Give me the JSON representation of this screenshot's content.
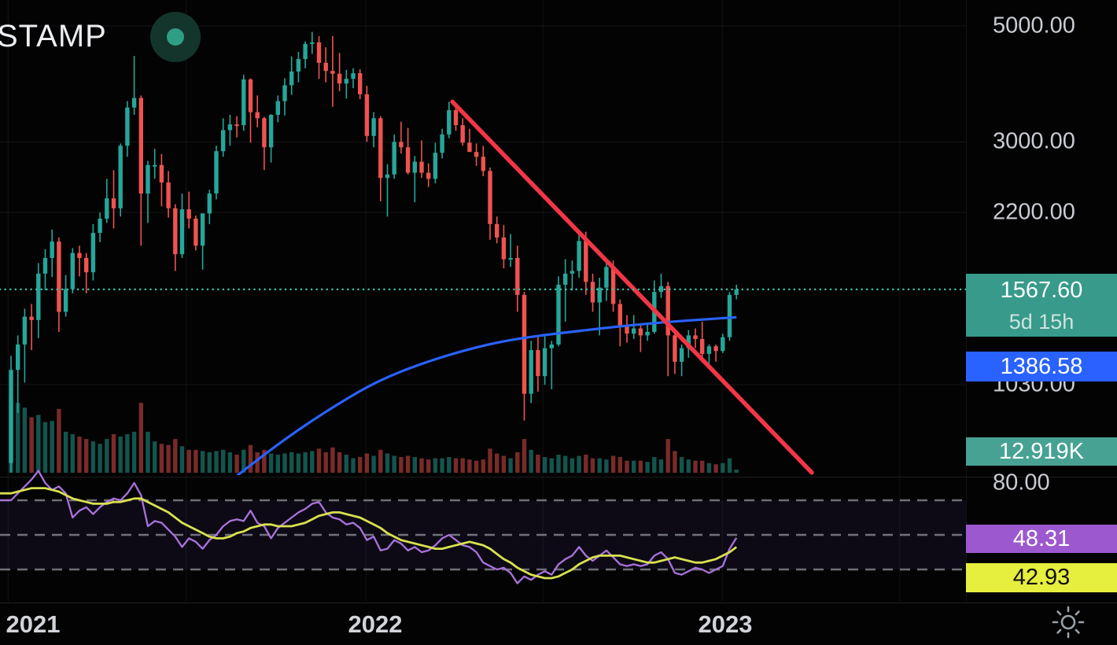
{
  "header": {
    "symbol_text": "STAMP"
  },
  "icons": {
    "logo": "circle-dot",
    "settings": "sun-gear"
  },
  "colors": {
    "up": "#26a69a",
    "down": "#ef5350",
    "vol_up": "rgba(38,166,154,0.5)",
    "vol_down": "rgba(239,83,80,0.5)",
    "ma": "#2962ff",
    "trend": "#f23645",
    "price_line": "#3cbfa4",
    "rsi": "#a973dc",
    "rsi_ma": "#d9e14f",
    "badge_price": "#379a8b",
    "badge_ma": "#2962ff",
    "badge_vol": "#47a294",
    "badge_rsi": "#9c59cf",
    "badge_rsi_ma": "#e6ee3e",
    "logo_dot": "#2f9e85"
  },
  "price_scale": {
    "price_badge": {
      "value": "1567.60",
      "countdown": "5d 15h"
    },
    "ma_badge": {
      "value": "1386.58"
    },
    "volume_badge": {
      "value": "12.919K"
    },
    "rsi_badge": {
      "value": "48.31"
    },
    "rsi_ma_badge": {
      "value": "42.93"
    }
  },
  "time_axis": {
    "labels": [
      "2021",
      "2022",
      "2023"
    ]
  },
  "chart_data": {
    "type": "candlestick",
    "symbol_visible_text": "STAMP",
    "timeframe": "1W",
    "x_unit": "weeks_since_2021-01-04",
    "x_axis_labels": [
      "2021",
      "2022",
      "2023"
    ],
    "y_axis_ticks": [
      5000,
      3000,
      2200,
      1030
    ],
    "y_scale": "log",
    "last_price": 1567.6,
    "price_line": {
      "value": 1567.6,
      "style": "dotted"
    },
    "volume_last_label": "12.919K",
    "candles": [
      [
        730,
        1170,
        700,
        1100,
        310
      ],
      [
        1100,
        1280,
        910,
        1230,
        290
      ],
      [
        1230,
        1440,
        1040,
        1390,
        270
      ],
      [
        1390,
        1470,
        1200,
        1370,
        230
      ],
      [
        1370,
        1760,
        1265,
        1680,
        240
      ],
      [
        1680,
        1870,
        1560,
        1800,
        210
      ],
      [
        1800,
        2040,
        1655,
        1935,
        215
      ],
      [
        1935,
        1970,
        1300,
        1420,
        265
      ],
      [
        1420,
        1670,
        1390,
        1570,
        170
      ],
      [
        1570,
        1880,
        1540,
        1840,
        160
      ],
      [
        1840,
        1900,
        1660,
        1800,
        150
      ],
      [
        1800,
        1840,
        1540,
        1690,
        140
      ],
      [
        1690,
        2090,
        1630,
        2010,
        130
      ],
      [
        2010,
        2200,
        1930,
        2140,
        120
      ],
      [
        2140,
        2550,
        2100,
        2340,
        140
      ],
      [
        2340,
        2650,
        2050,
        2240,
        160
      ],
      [
        2240,
        2980,
        2160,
        2950,
        150
      ],
      [
        2950,
        3590,
        2810,
        3490,
        160
      ],
      [
        3490,
        4380,
        3380,
        3640,
        170
      ],
      [
        3640,
        3680,
        1900,
        2390,
        290
      ],
      [
        2390,
        2760,
        2100,
        2710,
        170
      ],
      [
        2710,
        2910,
        2550,
        2710,
        130
      ],
      [
        2710,
        2845,
        2260,
        2510,
        120
      ],
      [
        2510,
        2640,
        2150,
        2240,
        115
      ],
      [
        2240,
        2280,
        1700,
        1830,
        140
      ],
      [
        1830,
        2390,
        1800,
        2230,
        110
      ],
      [
        2230,
        2410,
        2050,
        2140,
        95
      ],
      [
        2140,
        2170,
        1860,
        1900,
        95
      ],
      [
        1900,
        2190,
        1710,
        2190,
        90
      ],
      [
        2190,
        2430,
        2090,
        2390,
        85
      ],
      [
        2390,
        2950,
        2330,
        2880,
        90
      ],
      [
        2880,
        3330,
        2810,
        3160,
        95
      ],
      [
        3160,
        3380,
        2950,
        3240,
        85
      ],
      [
        3240,
        3360,
        3060,
        3230,
        75
      ],
      [
        3230,
        4030,
        3150,
        3950,
        95
      ],
      [
        3950,
        3970,
        2990,
        3420,
        115
      ],
      [
        3420,
        3680,
        3200,
        3330,
        85
      ],
      [
        3330,
        3350,
        2650,
        2930,
        95
      ],
      [
        2930,
        3390,
        2740,
        3380,
        80
      ],
      [
        3380,
        3680,
        3270,
        3590,
        75
      ],
      [
        3590,
        3970,
        3370,
        3850,
        80
      ],
      [
        3850,
        4370,
        3690,
        4090,
        85
      ],
      [
        4090,
        4460,
        3900,
        4320,
        80
      ],
      [
        4320,
        4670,
        4150,
        4620,
        85
      ],
      [
        4620,
        4868,
        4420,
        4650,
        90
      ],
      [
        4650,
        4780,
        3960,
        4250,
        100
      ],
      [
        4250,
        4550,
        3900,
        4100,
        85
      ],
      [
        4100,
        4780,
        3500,
        4050,
        105
      ],
      [
        4050,
        4440,
        3750,
        3880,
        85
      ],
      [
        3880,
        4120,
        3630,
        3960,
        75
      ],
      [
        3960,
        4150,
        3800,
        4060,
        60
      ],
      [
        4060,
        4130,
        3620,
        3700,
        65
      ],
      [
        3700,
        3840,
        3000,
        3080,
        80
      ],
      [
        3080,
        3420,
        2930,
        3330,
        70
      ],
      [
        3330,
        3360,
        2310,
        2560,
        95
      ],
      [
        2560,
        2720,
        2160,
        2600,
        80
      ],
      [
        2600,
        3100,
        2550,
        3000,
        70
      ],
      [
        3000,
        3280,
        2850,
        2930,
        65
      ],
      [
        2930,
        3190,
        2600,
        2620,
        70
      ],
      [
        2620,
        2820,
        2300,
        2750,
        65
      ],
      [
        2750,
        3020,
        2560,
        2620,
        60
      ],
      [
        2620,
        2730,
        2460,
        2550,
        55
      ],
      [
        2550,
        2990,
        2500,
        2860,
        60
      ],
      [
        2860,
        3180,
        2790,
        3100,
        60
      ],
      [
        3100,
        3580,
        3050,
        3450,
        65
      ],
      [
        3450,
        3550,
        3150,
        3230,
        60
      ],
      [
        3230,
        3330,
        2950,
        2990,
        60
      ],
      [
        2990,
        3180,
        2880,
        2870,
        55
      ],
      [
        2870,
        2980,
        2700,
        2810,
        50
      ],
      [
        2810,
        2950,
        2580,
        2640,
        55
      ],
      [
        2640,
        2680,
        1950,
        2090,
        100
      ],
      [
        2090,
        2160,
        1920,
        1970,
        80
      ],
      [
        1970,
        2080,
        1720,
        1790,
        70
      ],
      [
        1790,
        2000,
        1730,
        1800,
        60
      ],
      [
        1800,
        1900,
        1420,
        1530,
        85
      ],
      [
        1530,
        1550,
        880,
        990,
        140
      ],
      [
        990,
        1250,
        950,
        1200,
        95
      ],
      [
        1200,
        1280,
        1000,
        1070,
        75
      ],
      [
        1070,
        1280,
        1030,
        1210,
        65
      ],
      [
        1210,
        1250,
        1010,
        1230,
        60
      ],
      [
        1230,
        1660,
        1220,
        1600,
        75
      ],
      [
        1600,
        1790,
        1360,
        1680,
        70
      ],
      [
        1680,
        1780,
        1560,
        1700,
        60
      ],
      [
        1700,
        2030,
        1650,
        1940,
        70
      ],
      [
        1940,
        2020,
        1530,
        1620,
        75
      ],
      [
        1620,
        1680,
        1420,
        1480,
        60
      ],
      [
        1480,
        1650,
        1280,
        1580,
        60
      ],
      [
        1580,
        1790,
        1490,
        1730,
        55
      ],
      [
        1730,
        1780,
        1420,
        1470,
        70
      ],
      [
        1470,
        1500,
        1220,
        1330,
        65
      ],
      [
        1330,
        1400,
        1240,
        1290,
        50
      ],
      [
        1290,
        1400,
        1260,
        1320,
        50
      ],
      [
        1320,
        1340,
        1190,
        1280,
        50
      ],
      [
        1280,
        1350,
        1250,
        1300,
        45
      ],
      [
        1300,
        1630,
        1290,
        1550,
        65
      ],
      [
        1550,
        1680,
        1510,
        1590,
        55
      ],
      [
        1590,
        1620,
        1070,
        1280,
        140
      ],
      [
        1280,
        1300,
        1080,
        1140,
        90
      ],
      [
        1140,
        1230,
        1070,
        1210,
        65
      ],
      [
        1210,
        1310,
        1160,
        1280,
        55
      ],
      [
        1280,
        1320,
        1210,
        1260,
        50
      ],
      [
        1260,
        1360,
        1150,
        1180,
        50
      ],
      [
        1180,
        1230,
        1130,
        1220,
        40
      ],
      [
        1220,
        1230,
        1140,
        1195,
        35
      ],
      [
        1195,
        1290,
        1185,
        1270,
        40
      ],
      [
        1270,
        1550,
        1250,
        1530,
        60
      ],
      [
        1530,
        1600,
        1500,
        1567.6,
        13
      ]
    ],
    "ma_line": {
      "name": "moving-average",
      "last_value": 1386.58,
      "points": [
        [
          33,
          690
        ],
        [
          36,
          740
        ],
        [
          40,
          810
        ],
        [
          44,
          880
        ],
        [
          48,
          950
        ],
        [
          52,
          1020
        ],
        [
          56,
          1080
        ],
        [
          60,
          1130
        ],
        [
          64,
          1175
        ],
        [
          68,
          1215
        ],
        [
          72,
          1248
        ],
        [
          76,
          1272
        ],
        [
          80,
          1292
        ],
        [
          84,
          1310
        ],
        [
          88,
          1328
        ],
        [
          92,
          1344
        ],
        [
          96,
          1358
        ],
        [
          100,
          1370
        ],
        [
          103,
          1378
        ],
        [
          106,
          1386.58
        ]
      ]
    },
    "trendline": {
      "name": "descending-trendline",
      "from": [
        64.5,
        3580
      ],
      "to": [
        117,
        700
      ]
    },
    "rsi_panel": {
      "scale_tick": 80,
      "levels": [
        70,
        50,
        30
      ],
      "rsi_last": 48.31,
      "rsi_ma_last": 42.93,
      "rsi": [
        70,
        74,
        78,
        82,
        87,
        80,
        76,
        78,
        74,
        60,
        64,
        66,
        62,
        66,
        69,
        71,
        70,
        74,
        80,
        73,
        55,
        58,
        57,
        53,
        49,
        43,
        48,
        46,
        42,
        47,
        50,
        55,
        58,
        59,
        58,
        64,
        57,
        55,
        48,
        54,
        57,
        60,
        63,
        65,
        68,
        69,
        63,
        60,
        59,
        56,
        57,
        54,
        47,
        49,
        41,
        42,
        47,
        45,
        41,
        43,
        40,
        41,
        44,
        48,
        50,
        47,
        44,
        43,
        40,
        34,
        32,
        30,
        31,
        28,
        22,
        26,
        24,
        27,
        29,
        27,
        33,
        36,
        38,
        43,
        38,
        35,
        38,
        41,
        37,
        33,
        32,
        33,
        32,
        33,
        38,
        40,
        36,
        28,
        27,
        29,
        31,
        30,
        28,
        30,
        32,
        42,
        48.31
      ],
      "rsi_ma": [
        74,
        75,
        76,
        77,
        77,
        77,
        76,
        75,
        73,
        71,
        70,
        69,
        68,
        68,
        68,
        69,
        69,
        70,
        71,
        71,
        69,
        67,
        65,
        63,
        60,
        57,
        55,
        53,
        51,
        49,
        48,
        48,
        49,
        51,
        52,
        54,
        55,
        56,
        56,
        55,
        55,
        55,
        56,
        57,
        59,
        61,
        62,
        63,
        63,
        62,
        61,
        60,
        58,
        56,
        54,
        51,
        49,
        47,
        46,
        45,
        44,
        43,
        42,
        42,
        43,
        44,
        45,
        46,
        45,
        44,
        42,
        39,
        36,
        34,
        31,
        29,
        27,
        26,
        25,
        25,
        26,
        28,
        30,
        33,
        35,
        37,
        38,
        38,
        38,
        38,
        37,
        36,
        35,
        34,
        34,
        35,
        36,
        37,
        36,
        35,
        34,
        34,
        35,
        36,
        38,
        40,
        42.93
      ]
    }
  }
}
